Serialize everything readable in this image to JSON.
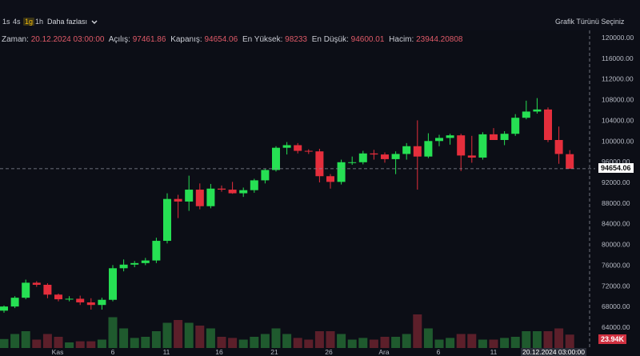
{
  "toolbar": {
    "timeframes": [
      {
        "label": "1s",
        "active": false
      },
      {
        "label": "4s",
        "active": false
      },
      {
        "label": "1g",
        "active": true
      },
      {
        "label": "1h",
        "active": false
      }
    ],
    "more_label": "Daha fazlası",
    "chart_type_label": "Grafik Türünü Seçiniz"
  },
  "ohlc": {
    "time_label": "Zaman:",
    "time_value": "20.12.2024 03:00:00",
    "open_label": "Açılış:",
    "open_value": "97461.86",
    "close_label": "Kapanış:",
    "close_value": "94654.06",
    "high_label": "En Yüksek:",
    "high_value": "98233",
    "low_label": "En Düşük:",
    "low_value": "94600.01",
    "volume_label": "Hacim:",
    "volume_value": "23944.20808"
  },
  "price_tag": "94654.06",
  "volume_tag": "23.94K",
  "crosshair_date": "20.12.2024  03:00:00",
  "colors": {
    "up": "#26e053",
    "down": "#e52e3c",
    "vol_up": "#1f5a2e",
    "vol_down": "#5c1f2a",
    "background": "#0c0e16",
    "text": "#c9ccd4",
    "accent": "#f0b90b"
  },
  "chart_data": {
    "type": "candlestick",
    "y_ticks": [
      "120000.00",
      "116000.00",
      "112000.00",
      "108000.00",
      "104000.00",
      "100000.00",
      "96000.00",
      "92000.00",
      "88000.00",
      "84000.00",
      "80000.00",
      "76000.00",
      "72000.00",
      "68000.00",
      "64000.00"
    ],
    "x_labels": [
      "Kas",
      "6",
      "11",
      "16",
      "21",
      "26",
      "Ara",
      "6",
      "11"
    ],
    "ylim": [
      63000,
      121000
    ],
    "candles": [
      {
        "o": 67200,
        "h": 68200,
        "l": 66800,
        "c": 68000,
        "v": 16000
      },
      {
        "o": 68000,
        "h": 70000,
        "l": 67700,
        "c": 69700,
        "v": 25000
      },
      {
        "o": 69700,
        "h": 73200,
        "l": 69400,
        "c": 72600,
        "v": 30000
      },
      {
        "o": 72600,
        "h": 72900,
        "l": 71800,
        "c": 72200,
        "v": 15000
      },
      {
        "o": 72200,
        "h": 72500,
        "l": 69600,
        "c": 70300,
        "v": 25000
      },
      {
        "o": 70300,
        "h": 70500,
        "l": 69000,
        "c": 69400,
        "v": 20000
      },
      {
        "o": 69400,
        "h": 70000,
        "l": 69000,
        "c": 69500,
        "v": 10000
      },
      {
        "o": 69500,
        "h": 70100,
        "l": 68300,
        "c": 68800,
        "v": 12000
      },
      {
        "o": 68800,
        "h": 69600,
        "l": 67400,
        "c": 68300,
        "v": 12000
      },
      {
        "o": 68300,
        "h": 69700,
        "l": 67400,
        "c": 69300,
        "v": 15000
      },
      {
        "o": 69300,
        "h": 76000,
        "l": 69000,
        "c": 75400,
        "v": 55000
      },
      {
        "o": 75400,
        "h": 77100,
        "l": 74800,
        "c": 76100,
        "v": 35000
      },
      {
        "o": 76100,
        "h": 76800,
        "l": 75600,
        "c": 76400,
        "v": 18000
      },
      {
        "o": 76400,
        "h": 77400,
        "l": 76000,
        "c": 76900,
        "v": 20000
      },
      {
        "o": 76900,
        "h": 81300,
        "l": 76400,
        "c": 80700,
        "v": 30000
      },
      {
        "o": 80700,
        "h": 89900,
        "l": 80200,
        "c": 88800,
        "v": 45000
      },
      {
        "o": 88800,
        "h": 89600,
        "l": 85100,
        "c": 88300,
        "v": 50000
      },
      {
        "o": 88300,
        "h": 93300,
        "l": 86500,
        "c": 90600,
        "v": 45000
      },
      {
        "o": 90600,
        "h": 91800,
        "l": 86800,
        "c": 87400,
        "v": 40000
      },
      {
        "o": 87400,
        "h": 91700,
        "l": 87000,
        "c": 90800,
        "v": 35000
      },
      {
        "o": 90800,
        "h": 91400,
        "l": 90200,
        "c": 90600,
        "v": 20000
      },
      {
        "o": 90600,
        "h": 92100,
        "l": 89800,
        "c": 89900,
        "v": 18000
      },
      {
        "o": 89900,
        "h": 91000,
        "l": 89200,
        "c": 90500,
        "v": 15000
      },
      {
        "o": 90500,
        "h": 92700,
        "l": 90000,
        "c": 92400,
        "v": 20000
      },
      {
        "o": 92400,
        "h": 94600,
        "l": 91800,
        "c": 94400,
        "v": 25000
      },
      {
        "o": 94400,
        "h": 99000,
        "l": 94100,
        "c": 98700,
        "v": 35000
      },
      {
        "o": 98700,
        "h": 99800,
        "l": 97400,
        "c": 99200,
        "v": 25000
      },
      {
        "o": 99200,
        "h": 99600,
        "l": 97600,
        "c": 98100,
        "v": 18000
      },
      {
        "o": 98100,
        "h": 98400,
        "l": 97500,
        "c": 98000,
        "v": 15000
      },
      {
        "o": 98000,
        "h": 98500,
        "l": 92000,
        "c": 93200,
        "v": 30000
      },
      {
        "o": 93200,
        "h": 93600,
        "l": 90800,
        "c": 92100,
        "v": 30000
      },
      {
        "o": 92100,
        "h": 96400,
        "l": 91600,
        "c": 95900,
        "v": 25000
      },
      {
        "o": 95900,
        "h": 97000,
        "l": 95400,
        "c": 95900,
        "v": 15000
      },
      {
        "o": 95900,
        "h": 98100,
        "l": 95500,
        "c": 97600,
        "v": 18000
      },
      {
        "o": 97600,
        "h": 98300,
        "l": 96400,
        "c": 97400,
        "v": 15000
      },
      {
        "o": 97400,
        "h": 97800,
        "l": 95800,
        "c": 96500,
        "v": 20000
      },
      {
        "o": 96500,
        "h": 98000,
        "l": 93600,
        "c": 97500,
        "v": 20000
      },
      {
        "o": 97500,
        "h": 99600,
        "l": 96400,
        "c": 99000,
        "v": 25000
      },
      {
        "o": 99000,
        "h": 104000,
        "l": 90600,
        "c": 97000,
        "v": 60000
      },
      {
        "o": 97000,
        "h": 101500,
        "l": 96700,
        "c": 100000,
        "v": 35000
      },
      {
        "o": 100000,
        "h": 101200,
        "l": 99000,
        "c": 100600,
        "v": 15000
      },
      {
        "o": 100600,
        "h": 101400,
        "l": 99300,
        "c": 101100,
        "v": 18000
      },
      {
        "o": 101100,
        "h": 101400,
        "l": 94200,
        "c": 97200,
        "v": 25000
      },
      {
        "o": 97200,
        "h": 101000,
        "l": 95800,
        "c": 96800,
        "v": 25000
      },
      {
        "o": 96800,
        "h": 101700,
        "l": 96400,
        "c": 101300,
        "v": 15000
      },
      {
        "o": 101300,
        "h": 102500,
        "l": 100200,
        "c": 100200,
        "v": 15000
      },
      {
        "o": 100200,
        "h": 101900,
        "l": 99200,
        "c": 101400,
        "v": 18000
      },
      {
        "o": 101400,
        "h": 105200,
        "l": 101000,
        "c": 104500,
        "v": 20000
      },
      {
        "o": 104500,
        "h": 107800,
        "l": 104200,
        "c": 105700,
        "v": 30000
      },
      {
        "o": 105700,
        "h": 108300,
        "l": 105300,
        "c": 106100,
        "v": 30000
      },
      {
        "o": 106100,
        "h": 106500,
        "l": 99800,
        "c": 100200,
        "v": 30000
      },
      {
        "o": 100200,
        "h": 102800,
        "l": 95600,
        "c": 97500,
        "v": 35000
      },
      {
        "o": 97461.86,
        "h": 98233,
        "l": 94600.01,
        "c": 94654.06,
        "v": 23944
      }
    ],
    "current_price": 94654.06
  }
}
